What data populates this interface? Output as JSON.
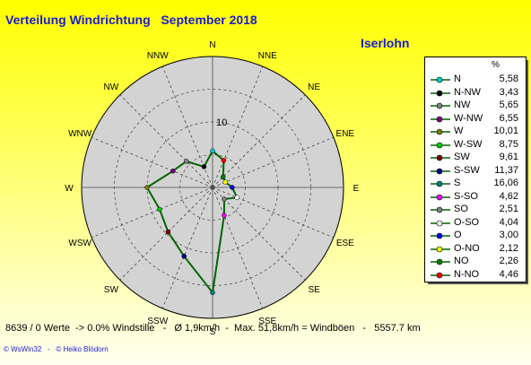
{
  "header": {
    "title": "Verteilung Windrichtung   September 2018",
    "location": "Iserlohn"
  },
  "footer": {
    "stats": "8639 / 0 Werte  -> 0.0% Windstille   -   Ø 1,9km/h  -  Max. 51,8km/h = Windböen   -   5557.7 km",
    "credit": "© WsWin32   -   © Heiko Blödorn"
  },
  "colors": {
    "background_top": "#ffff00",
    "background_bottom": "#fffff0",
    "polar_disc": "#d3d3d3",
    "series_line": "#006400",
    "text_blue": "#1b1bcf"
  },
  "chart_data": {
    "type": "polar-line",
    "title": "Verteilung Windrichtung   September 2018",
    "directions": [
      "N",
      "NNE",
      "NE",
      "ENE",
      "E",
      "ESE",
      "SE",
      "SSE",
      "S",
      "SSW",
      "SW",
      "WSW",
      "W",
      "WNW",
      "NW",
      "NNW"
    ],
    "rlim": [
      0,
      20
    ],
    "rtick_labels": [
      "10"
    ],
    "grid": true,
    "series": [
      {
        "values": [
          5.58,
          4.46,
          2.26,
          2.12,
          3.0,
          4.04,
          2.51,
          4.62,
          16.06,
          11.37,
          9.61,
          8.75,
          10.01,
          6.55,
          5.65,
          3.43
        ]
      }
    ],
    "legend": {
      "position": "right",
      "unit": "%",
      "entries": [
        {
          "label": "N",
          "value": "5,58",
          "color": "#00cccc"
        },
        {
          "label": "N-NW",
          "value": "3,43",
          "color": "#000000"
        },
        {
          "label": "NW",
          "value": "5,65",
          "color": "#808080"
        },
        {
          "label": "W-NW",
          "value": "6,55",
          "color": "#800080"
        },
        {
          "label": "W",
          "value": "10,01",
          "color": "#808000"
        },
        {
          "label": "W-SW",
          "value": "8,75",
          "color": "#00cc00"
        },
        {
          "label": "SW",
          "value": "9,61",
          "color": "#800000"
        },
        {
          "label": "S-SW",
          "value": "11,37",
          "color": "#000080"
        },
        {
          "label": "S",
          "value": "16,06",
          "color": "#008080"
        },
        {
          "label": "S-SO",
          "value": "4,62",
          "color": "#ff00ff"
        },
        {
          "label": "SO",
          "value": "2,51",
          "color": "#808080"
        },
        {
          "label": "O-SO",
          "value": "4,04",
          "color": "#ffffff"
        },
        {
          "label": "O",
          "value": "3,00",
          "color": "#0000ff"
        },
        {
          "label": "O-NO",
          "value": "2,12",
          "color": "#ffff00"
        },
        {
          "label": "NO",
          "value": "2,26",
          "color": "#008000"
        },
        {
          "label": "N-NO",
          "value": "4,46",
          "color": "#ff0000"
        }
      ]
    }
  }
}
